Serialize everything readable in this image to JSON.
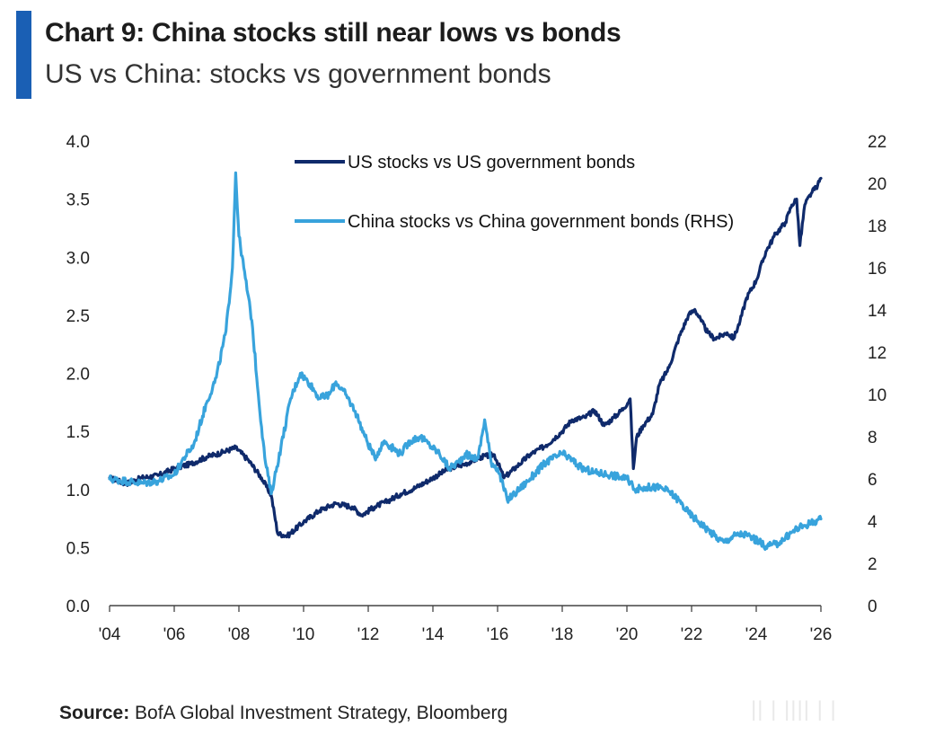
{
  "header": {
    "title": "Chart 9: China stocks still near lows vs bonds",
    "subtitle": "US vs China: stocks vs government bonds"
  },
  "footer": {
    "source_label": "Source:",
    "source_text": "BofA Global Investment Strategy, Bloomberg",
    "watermark": "|| | |||| | |"
  },
  "colors": {
    "accent": "#1a5fb4",
    "us_series": "#0f2a6b",
    "china_series": "#38a3dc",
    "axis": "#444444"
  },
  "chart_data": {
    "type": "line",
    "title": "Chart 9: China stocks still near lows vs bonds",
    "subtitle": "US vs China: stocks vs government bonds",
    "xlabel": "",
    "ylabel": "",
    "xlim": [
      2004,
      2026
    ],
    "ylim_left": [
      0.0,
      4.0
    ],
    "ylim_right": [
      0,
      22
    ],
    "x_ticks": [
      "'04",
      "'06",
      "'08",
      "'10",
      "'12",
      "'14",
      "'16",
      "'18",
      "'20",
      "'22",
      "'24",
      "'26"
    ],
    "y_ticks_left": [
      "0.0",
      "0.5",
      "1.0",
      "1.5",
      "2.0",
      "2.5",
      "3.0",
      "3.5",
      "4.0"
    ],
    "y_ticks_right": [
      "0",
      "2",
      "4",
      "6",
      "8",
      "10",
      "12",
      "14",
      "16",
      "18",
      "20",
      "22"
    ],
    "grid": false,
    "legend_position": "top-center",
    "series": [
      {
        "name": "US stocks vs US government bonds",
        "axis": "left",
        "x": [
          2004.0,
          2004.5,
          2005.0,
          2005.5,
          2006.0,
          2006.5,
          2007.0,
          2007.5,
          2007.9,
          2008.3,
          2008.7,
          2009.0,
          2009.2,
          2009.5,
          2010.0,
          2010.5,
          2011.0,
          2011.5,
          2011.8,
          2012.2,
          2012.6,
          2013.0,
          2013.5,
          2014.0,
          2014.5,
          2015.0,
          2015.5,
          2015.9,
          2016.2,
          2016.6,
          2017.0,
          2017.5,
          2018.0,
          2018.3,
          2018.7,
          2019.0,
          2019.3,
          2019.6,
          2019.9,
          2020.1,
          2020.2,
          2020.3,
          2020.5,
          2020.8,
          2021.0,
          2021.3,
          2021.6,
          2021.9,
          2022.1,
          2022.3,
          2022.5,
          2022.7,
          2022.9,
          2023.1,
          2023.3,
          2023.5,
          2023.7,
          2024.0,
          2024.3,
          2024.6,
          2024.9,
          2025.1,
          2025.25,
          2025.35,
          2025.5,
          2025.7,
          2025.9,
          2026.0
        ],
        "values": [
          1.1,
          1.05,
          1.1,
          1.12,
          1.18,
          1.22,
          1.28,
          1.32,
          1.36,
          1.25,
          1.1,
          0.95,
          0.62,
          0.6,
          0.72,
          0.82,
          0.88,
          0.85,
          0.78,
          0.85,
          0.9,
          0.96,
          1.02,
          1.1,
          1.18,
          1.22,
          1.28,
          1.3,
          1.1,
          1.2,
          1.3,
          1.38,
          1.5,
          1.6,
          1.62,
          1.68,
          1.55,
          1.62,
          1.7,
          1.78,
          1.18,
          1.45,
          1.55,
          1.65,
          1.9,
          2.05,
          2.3,
          2.5,
          2.55,
          2.45,
          2.35,
          2.3,
          2.32,
          2.35,
          2.3,
          2.45,
          2.65,
          2.8,
          3.05,
          3.2,
          3.3,
          3.45,
          3.5,
          3.1,
          3.45,
          3.55,
          3.62,
          3.68
        ]
      },
      {
        "name": "China stocks vs China government bonds (RHS)",
        "axis": "right",
        "x": [
          2004.0,
          2004.5,
          2005.0,
          2005.5,
          2006.0,
          2006.3,
          2006.6,
          2007.0,
          2007.3,
          2007.6,
          2007.8,
          2007.9,
          2008.0,
          2008.2,
          2008.4,
          2008.6,
          2008.8,
          2009.0,
          2009.3,
          2009.6,
          2009.9,
          2010.2,
          2010.5,
          2010.8,
          2011.0,
          2011.3,
          2011.6,
          2011.9,
          2012.2,
          2012.5,
          2012.8,
          2013.0,
          2013.3,
          2013.6,
          2013.9,
          2014.2,
          2014.5,
          2014.8,
          2015.0,
          2015.2,
          2015.4,
          2015.6,
          2015.8,
          2016.0,
          2016.3,
          2016.6,
          2017.0,
          2017.5,
          2018.0,
          2018.3,
          2018.6,
          2019.0,
          2019.5,
          2020.0,
          2020.3,
          2020.6,
          2021.0,
          2021.3,
          2021.6,
          2021.9,
          2022.2,
          2022.5,
          2022.8,
          2023.0,
          2023.3,
          2023.6,
          2023.9,
          2024.1,
          2024.3,
          2024.6,
          2024.9,
          2025.2,
          2025.5,
          2025.8,
          2026.0
        ],
        "values": [
          6.0,
          5.9,
          5.8,
          5.9,
          6.2,
          7.0,
          7.6,
          9.6,
          10.8,
          13.0,
          16.0,
          20.5,
          17.5,
          15.5,
          13.5,
          10.0,
          7.0,
          5.3,
          7.5,
          9.8,
          11.0,
          10.5,
          9.8,
          10.0,
          10.6,
          10.0,
          9.2,
          8.0,
          7.0,
          7.8,
          7.4,
          7.2,
          7.8,
          8.0,
          7.6,
          7.2,
          6.5,
          6.8,
          7.2,
          7.0,
          7.0,
          8.8,
          6.8,
          6.5,
          5.0,
          5.4,
          6.0,
          6.8,
          7.2,
          6.9,
          6.5,
          6.3,
          6.2,
          6.0,
          5.5,
          5.6,
          5.6,
          5.4,
          5.0,
          4.4,
          4.0,
          3.6,
          3.2,
          3.0,
          3.3,
          3.4,
          3.2,
          3.0,
          2.8,
          2.9,
          3.2,
          3.6,
          3.8,
          4.0,
          4.1
        ]
      }
    ]
  }
}
